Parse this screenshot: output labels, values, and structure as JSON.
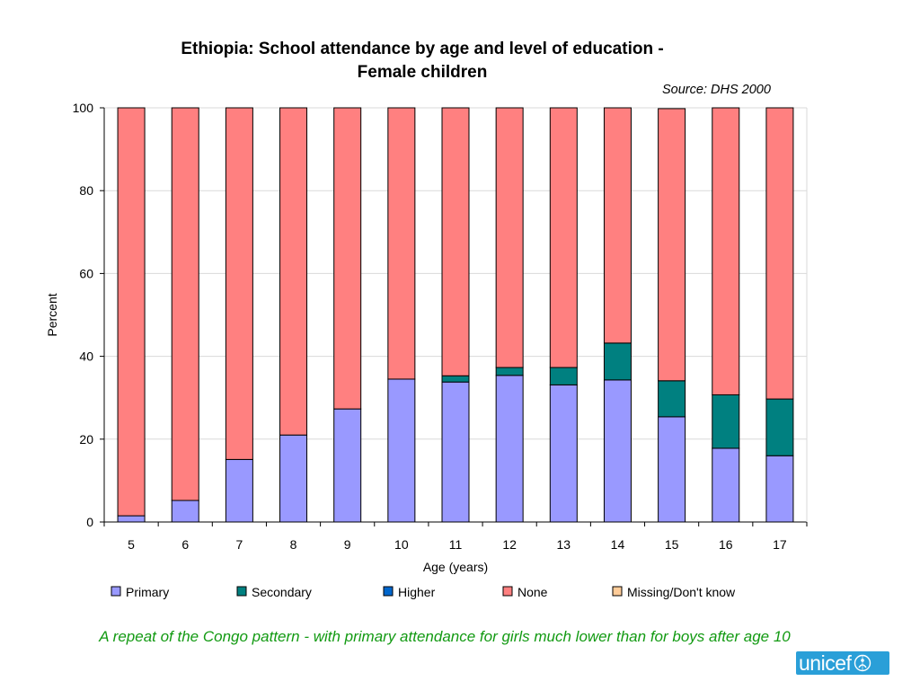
{
  "title_line1": "Ethiopia: School attendance by age and level of education -",
  "title_line2": "Female children",
  "source": "Source: DHS 2000",
  "caption": "A repeat of the Congo pattern - with primary attendance for girls much lower than for boys after age 10",
  "logo": {
    "text": "unicef",
    "emblem": "unicef-emblem-icon"
  },
  "chart_data": {
    "type": "bar",
    "stacked": true,
    "xlabel": "Age (years)",
    "ylabel": "Percent",
    "ylim": [
      0,
      100
    ],
    "yticks": [
      0,
      20,
      40,
      60,
      80,
      100
    ],
    "grid": true,
    "legend_position": "bottom",
    "categories": [
      "5",
      "6",
      "7",
      "8",
      "9",
      "10",
      "11",
      "12",
      "13",
      "14",
      "15",
      "16",
      "17"
    ],
    "series": [
      {
        "name": "Primary",
        "color": "#9999ff",
        "values": [
          1.5,
          5.2,
          15.1,
          21.0,
          27.3,
          34.5,
          33.8,
          35.4,
          33.1,
          34.3,
          25.4,
          17.8,
          16.0
        ]
      },
      {
        "name": "Secondary",
        "color": "#008080",
        "values": [
          0,
          0,
          0,
          0,
          0,
          0,
          1.5,
          1.9,
          4.2,
          8.9,
          8.7,
          12.9,
          13.7
        ]
      },
      {
        "name": "Higher",
        "color": "#0066cc",
        "values": [
          0,
          0,
          0,
          0,
          0,
          0,
          0,
          0,
          0,
          0,
          0,
          0,
          0
        ]
      },
      {
        "name": "None",
        "color": "#ff8080",
        "values": [
          98.5,
          94.8,
          84.9,
          79.0,
          72.7,
          65.5,
          64.7,
          62.7,
          62.7,
          56.8,
          65.7,
          69.3,
          70.3
        ]
      },
      {
        "name": "Missing/Don't know",
        "color": "#ffcc99",
        "values": [
          0,
          0,
          0,
          0,
          0,
          0,
          0,
          0,
          0,
          0,
          0,
          0,
          0
        ]
      }
    ]
  }
}
